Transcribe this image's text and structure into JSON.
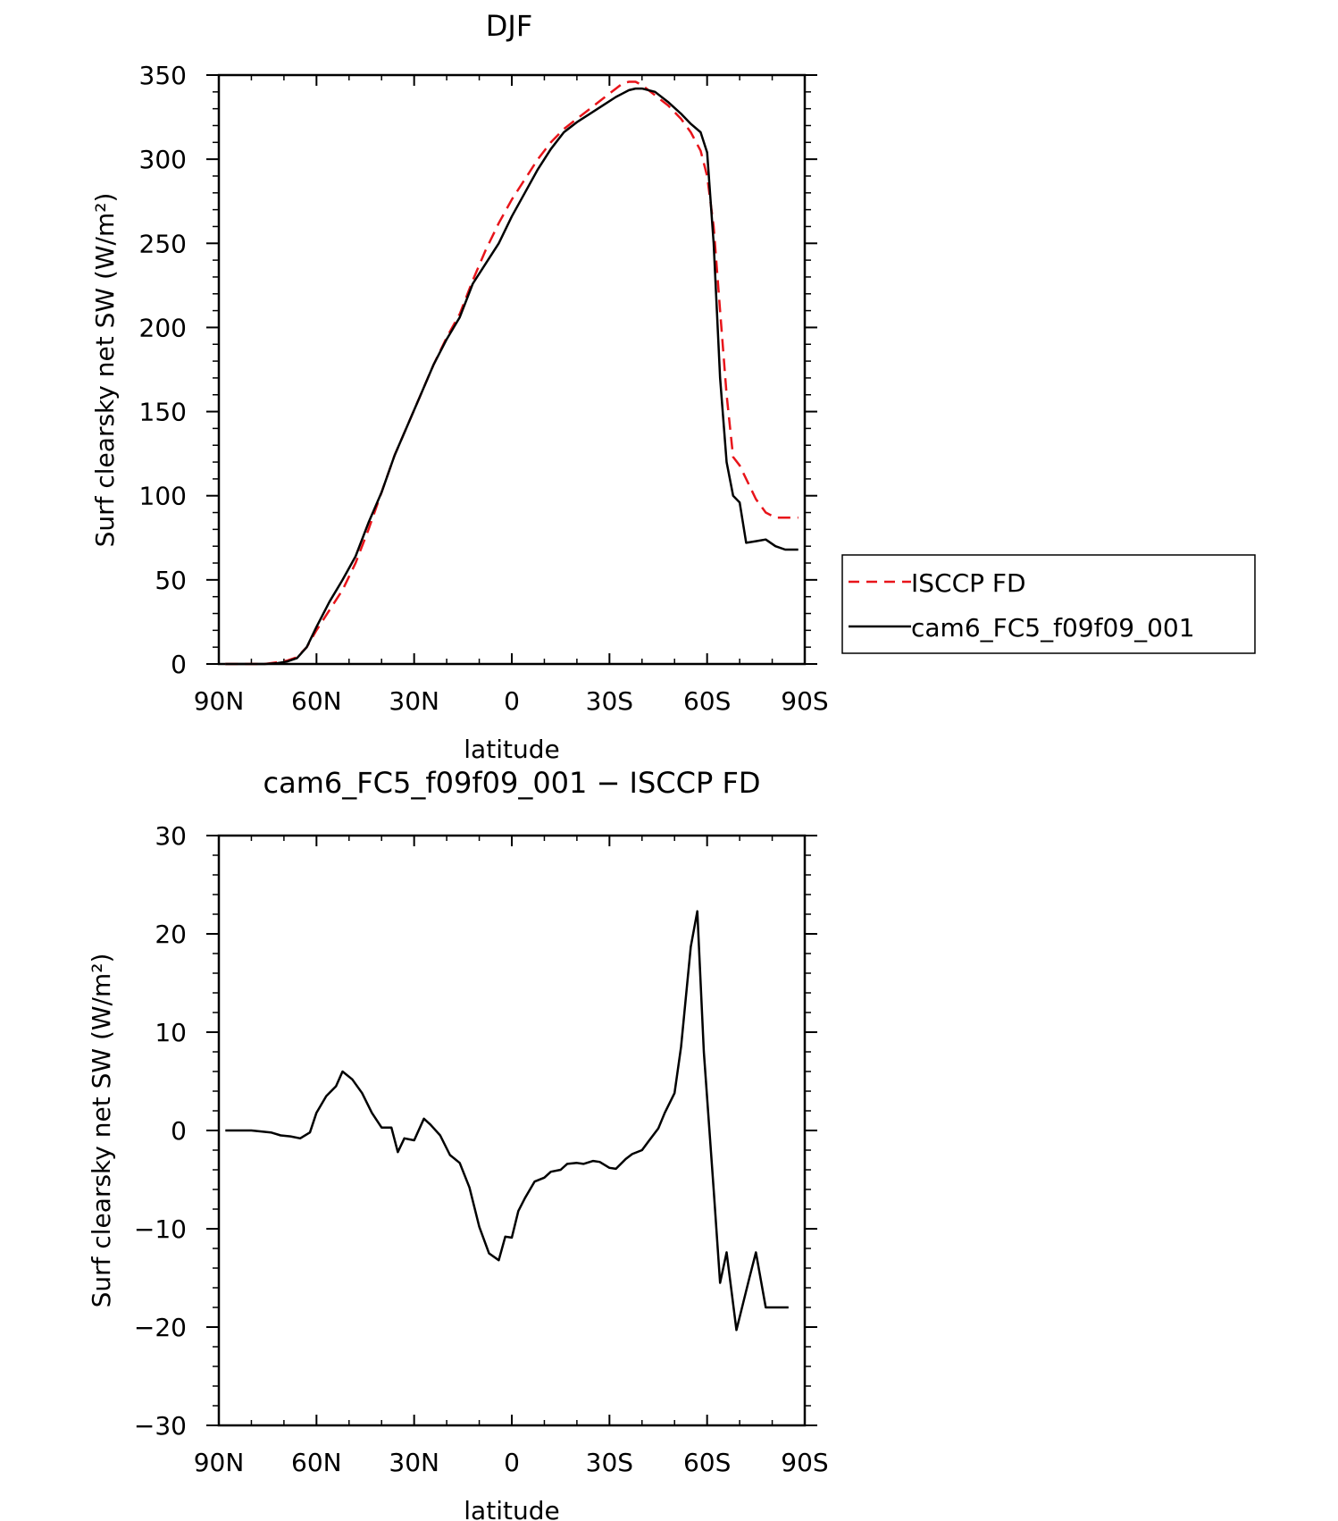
{
  "chart_data": [
    {
      "type": "line",
      "title": "DJF",
      "xlabel": "latitude",
      "ylabel": "Surf clearsky net SW (W/m²)",
      "xlim": [
        90,
        -90
      ],
      "ylim": [
        0,
        350
      ],
      "xticks": [
        90,
        60,
        30,
        0,
        -30,
        -60,
        -90
      ],
      "xtick_labels": [
        "90N",
        "60N",
        "30N",
        "0",
        "30S",
        "60S",
        "90S"
      ],
      "yticks": [
        0,
        50,
        100,
        150,
        200,
        250,
        300,
        350
      ],
      "ytick_labels": [
        "0",
        "50",
        "100",
        "150",
        "200",
        "250",
        "300",
        "350"
      ],
      "legend": {
        "placement": "right",
        "entries": [
          "ISCCP FD",
          "cam6_FC5_f09f09_001"
        ]
      },
      "series": [
        {
          "name": "ISCCP FD",
          "color": "#e8141a",
          "dash": "dashed",
          "x": [
            88,
            84,
            80,
            76,
            72,
            69,
            66,
            63,
            60,
            56,
            52,
            48,
            44,
            40,
            36,
            32,
            28,
            24,
            20,
            16,
            12,
            8,
            4,
            0,
            -4,
            -8,
            -12,
            -16,
            -20,
            -24,
            -28,
            -32,
            -34,
            -36,
            -38,
            -40,
            -44,
            -48,
            -52,
            -55,
            -58,
            -60,
            -62,
            -64,
            -66,
            -68,
            -70,
            -72,
            -75,
            -78,
            -81,
            -84,
            -88
          ],
          "values": [
            0,
            0,
            0,
            0,
            1,
            2,
            4,
            10,
            20,
            32,
            44,
            60,
            80,
            102,
            124,
            142,
            160,
            178,
            194,
            208,
            228,
            246,
            262,
            276,
            288,
            300,
            310,
            318,
            324,
            330,
            336,
            342,
            345,
            346,
            346,
            344,
            338,
            332,
            324,
            316,
            305,
            290,
            260,
            210,
            160,
            123,
            118,
            110,
            98,
            90,
            87,
            87,
            87
          ]
        },
        {
          "name": "cam6_FC5_f09f09_001",
          "color": "#000000",
          "dash": "solid",
          "x": [
            88,
            84,
            80,
            76,
            72,
            69,
            66,
            63,
            60,
            56,
            52,
            48,
            44,
            40,
            36,
            32,
            28,
            24,
            20,
            16,
            12,
            8,
            4,
            0,
            -4,
            -8,
            -12,
            -16,
            -20,
            -24,
            -28,
            -32,
            -34,
            -36,
            -38,
            -40,
            -44,
            -48,
            -52,
            -55,
            -58,
            -60,
            -62,
            -64,
            -66,
            -68,
            -70,
            -72,
            -75,
            -78,
            -81,
            -84,
            -86,
            -88
          ],
          "values": [
            0,
            0,
            0,
            0,
            0.5,
            1.5,
            3.5,
            10,
            22,
            37,
            50,
            64,
            84,
            102,
            124,
            142,
            160,
            178,
            193,
            206,
            226,
            238,
            250,
            266,
            280,
            294,
            306,
            316,
            322,
            327,
            332,
            337,
            339,
            341,
            342,
            342,
            340,
            334,
            327,
            321,
            316,
            304,
            250,
            170,
            120,
            100,
            96,
            72,
            73,
            74,
            70,
            68,
            68,
            68
          ]
        }
      ]
    },
    {
      "type": "line",
      "title": "cam6_FC5_f09f09_001 − ISCCP FD",
      "xlabel": "latitude",
      "ylabel": "Surf clearsky net SW (W/m²)",
      "xlim": [
        90,
        -90
      ],
      "ylim": [
        -30,
        30
      ],
      "xticks": [
        90,
        60,
        30,
        0,
        -30,
        -60,
        -90
      ],
      "xtick_labels": [
        "90N",
        "60N",
        "30N",
        "0",
        "30S",
        "60S",
        "90S"
      ],
      "yticks": [
        -30,
        -20,
        -10,
        0,
        10,
        20,
        30
      ],
      "ytick_labels": [
        "−30",
        "−20",
        "−10",
        "0",
        "10",
        "20",
        "30"
      ],
      "series": [
        {
          "color": "#000000",
          "dash": "solid",
          "x": [
            88,
            84,
            80,
            77,
            74,
            71,
            68,
            65,
            62,
            60,
            57,
            54,
            52,
            49,
            46,
            43,
            40,
            37,
            35,
            33,
            30,
            27,
            25,
            22,
            19,
            16,
            13,
            10,
            7,
            4,
            2,
            0,
            -2,
            -4,
            -7,
            -10,
            -12,
            -15,
            -17,
            -20,
            -22,
            -25,
            -27,
            -30,
            -32,
            -35,
            -37,
            -40,
            -42,
            -45,
            -47,
            -50,
            -52,
            -55,
            -57,
            -59,
            -62,
            -64,
            -66,
            -69,
            -73,
            -75,
            -78,
            -80,
            -83,
            -85
          ],
          "values": [
            0,
            0,
            0,
            -0.1,
            -0.2,
            -0.5,
            -0.6,
            -0.8,
            -0.2,
            1.8,
            3.5,
            4.5,
            6.0,
            5.2,
            3.8,
            1.8,
            0.3,
            0.3,
            -2.2,
            -0.8,
            -1.0,
            1.2,
            0.6,
            -0.5,
            -2.5,
            -3.3,
            -5.8,
            -9.8,
            -12.5,
            -13.2,
            -10.8,
            -10.9,
            -8.2,
            -6.9,
            -5.2,
            -4.8,
            -4.2,
            -4.0,
            -3.4,
            -3.3,
            -3.4,
            -3.1,
            -3.2,
            -3.8,
            -3.9,
            -2.9,
            -2.4,
            -2.0,
            -1.1,
            0.2,
            1.8,
            3.8,
            8.5,
            18.7,
            22.3,
            8.0,
            -6.0,
            -15.5,
            -12.4,
            -20.3,
            -15.0,
            -12.4,
            -18.0,
            -18.0,
            -18.0,
            -18.0
          ]
        }
      ]
    }
  ]
}
